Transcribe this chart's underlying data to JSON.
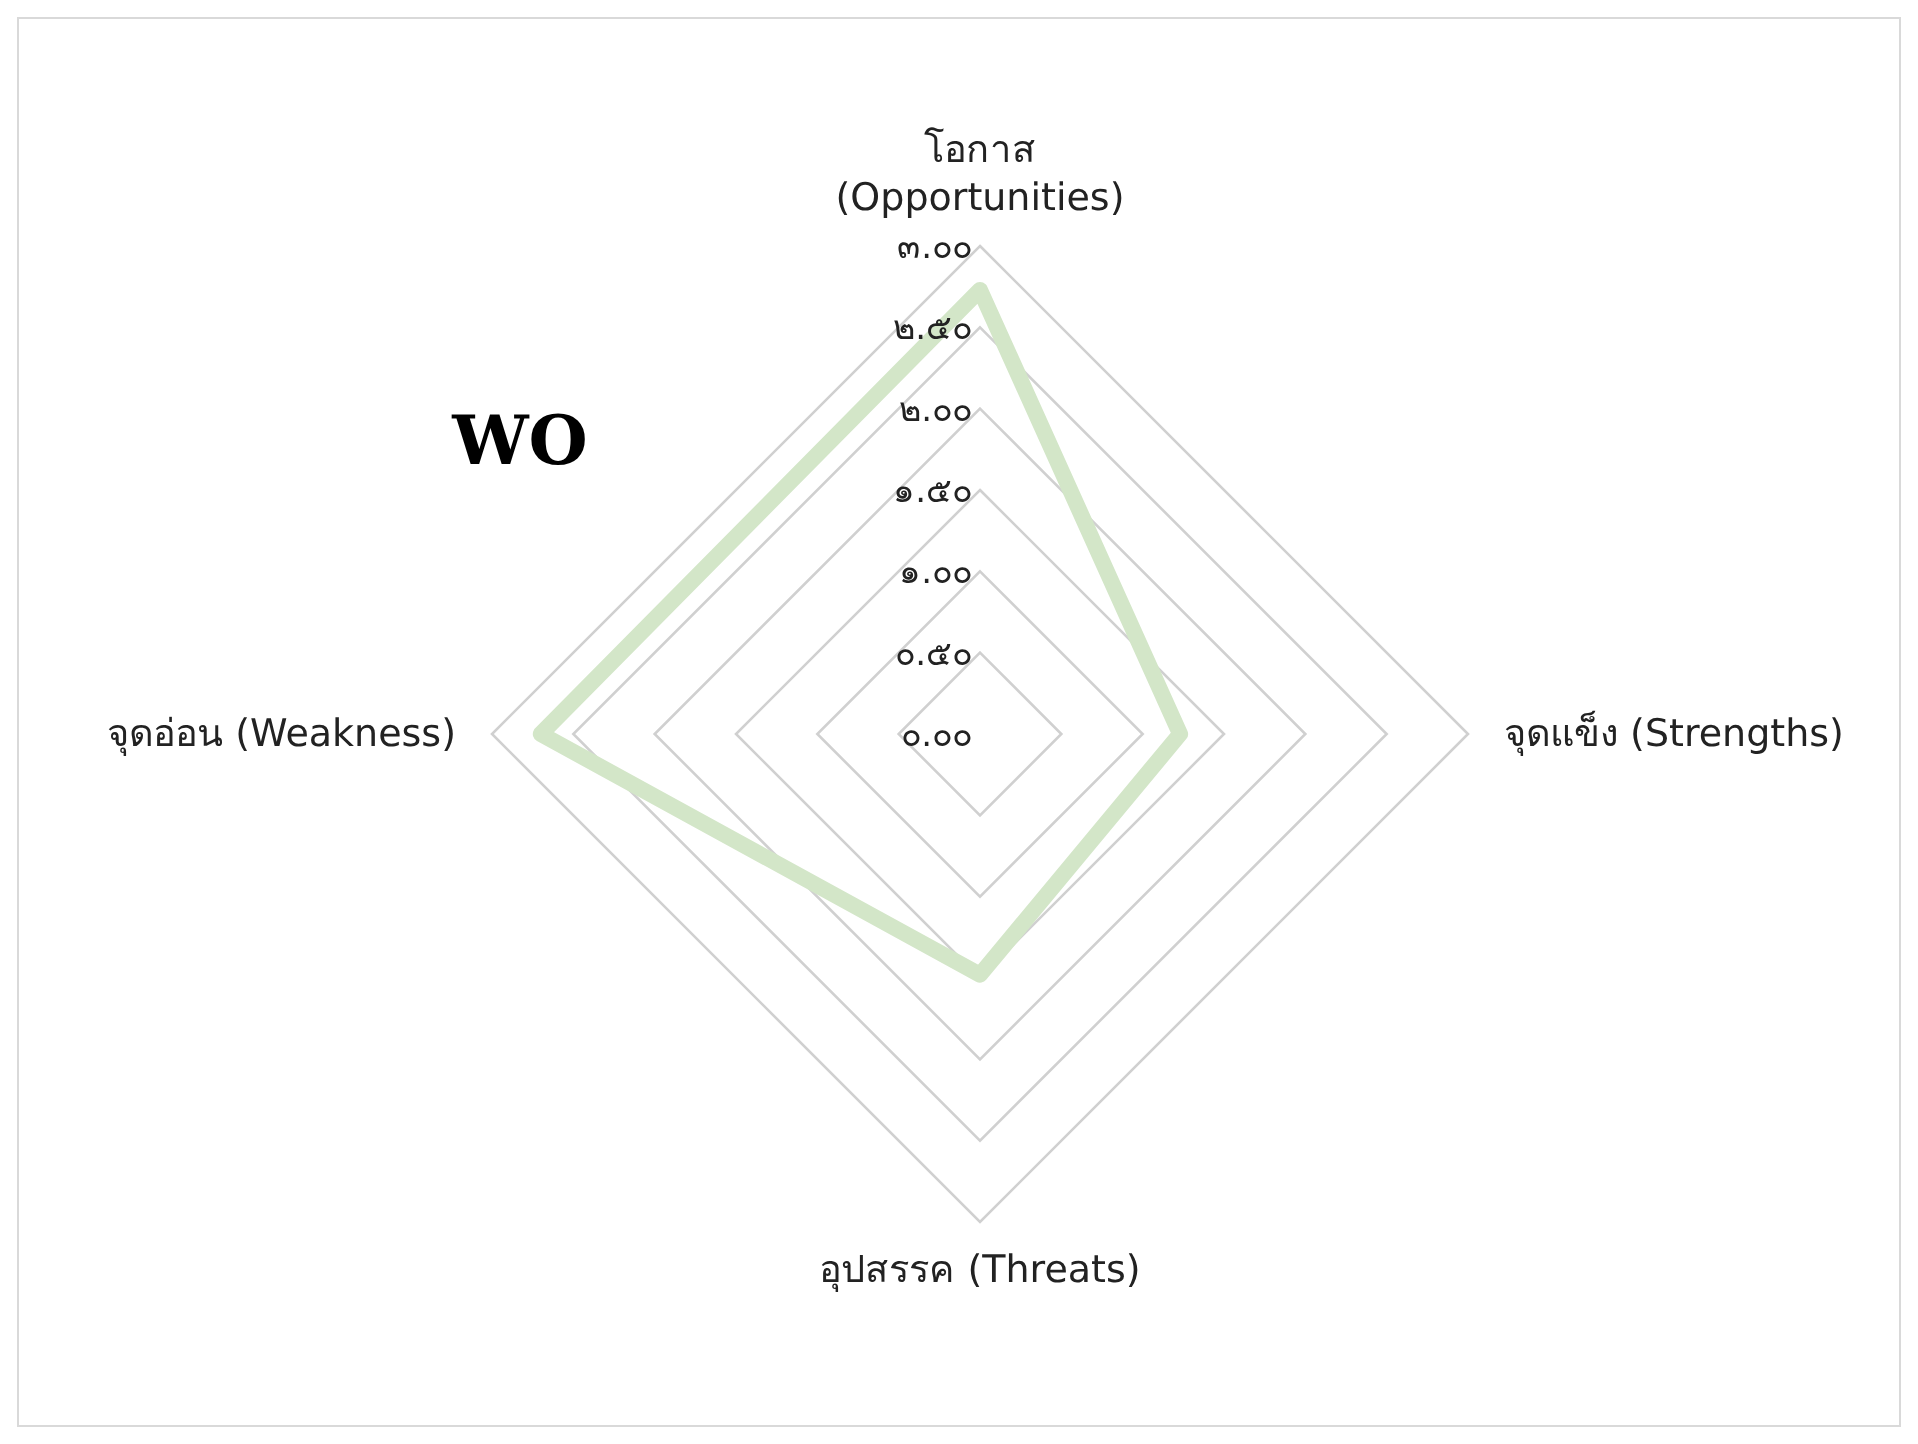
{
  "chart_data": {
    "type": "radar",
    "title": "WO",
    "categories": [
      "โอกาส\n(Opportunities)",
      "จุดแข็ง (Strengths)",
      "อุปสรรค (Threats)",
      "จุดอ่อน (Weakness)"
    ],
    "series": [
      {
        "color": "#d3e6c8",
        "values": [
          2.73,
          1.23,
          1.48,
          2.7
        ]
      }
    ],
    "ylim": [
      0,
      3
    ],
    "yticks": [
      {
        "value": 0,
        "label": "๐.๐๐"
      },
      {
        "value": 0.5,
        "label": "๐.๕๐"
      },
      {
        "value": 1,
        "label": "๑.๐๐"
      },
      {
        "value": 1.5,
        "label": "๑.๕๐"
      },
      {
        "value": 2,
        "label": "๒.๐๐"
      },
      {
        "value": 2.5,
        "label": "๒.๕๐"
      },
      {
        "value": 3,
        "label": "๓.๐๐"
      }
    ],
    "grid": true
  }
}
